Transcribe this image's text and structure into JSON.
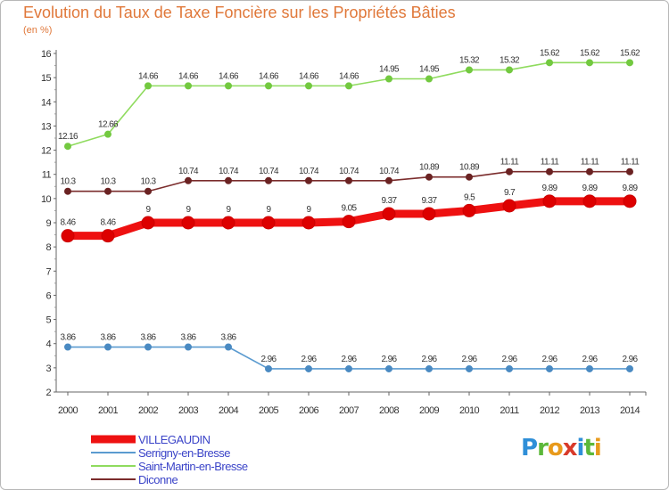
{
  "chart_data": {
    "type": "line",
    "title": "Evolution du Taux de Taxe Foncière sur les Propriétés Bâties",
    "ylabel": "(en %)",
    "xlabel": "",
    "ylim": [
      2,
      16
    ],
    "yticks": [
      "2",
      "3",
      "4",
      "5",
      "6",
      "7",
      "8",
      "9",
      "10",
      "11",
      "12",
      "13",
      "14",
      "15",
      "16"
    ],
    "categories": [
      "2000",
      "2001",
      "2002",
      "2003",
      "2004",
      "2005",
      "2006",
      "2007",
      "2008",
      "2009",
      "2010",
      "2011",
      "2012",
      "2013",
      "2014"
    ],
    "grid": false,
    "series": [
      {
        "name": "Saint-Martin-en-Bresse",
        "color": "#8fdb5e",
        "marker": "#73c940",
        "values": [
          12.16,
          12.66,
          14.66,
          14.66,
          14.66,
          14.66,
          14.66,
          14.66,
          14.95,
          14.95,
          15.32,
          15.32,
          15.62,
          15.62,
          15.62
        ],
        "labels": [
          "12.16",
          "12.66",
          "14.66",
          "14.66",
          "14.66",
          "14.66",
          "14.66",
          "14.66",
          "14.95",
          "14.95",
          "15.32",
          "15.32",
          "15.62",
          "15.62",
          "15.62"
        ]
      },
      {
        "name": "Diconne",
        "color": "#7b2c2c",
        "marker": "#6a2222",
        "values": [
          10.3,
          10.3,
          10.3,
          10.74,
          10.74,
          10.74,
          10.74,
          10.74,
          10.74,
          10.89,
          10.89,
          11.11,
          11.11,
          11.11,
          11.11
        ],
        "labels": [
          "10.3",
          "10.3",
          "10.3",
          "10.74",
          "10.74",
          "10.74",
          "10.74",
          "10.74",
          "10.74",
          "10.89",
          "10.89",
          "11.11",
          "11.11",
          "11.11",
          "11.11"
        ]
      },
      {
        "name": "VILLEGAUDIN",
        "color": "#ee1111",
        "marker": "#dd0000",
        "values": [
          8.46,
          8.46,
          9,
          9,
          9,
          9,
          9,
          9.05,
          9.37,
          9.37,
          9.5,
          9.7,
          9.89,
          9.89,
          9.89
        ],
        "labels": [
          "8.46",
          "8.46",
          "9",
          "9",
          "9",
          "9",
          "9",
          "9.05",
          "9.37",
          "9.37",
          "9.5",
          "9.7",
          "9.89",
          "9.89",
          "9.89"
        ]
      },
      {
        "name": "Serrigny-en-Bresse",
        "color": "#5b9bd0",
        "marker": "#4a8ac2",
        "values": [
          3.86,
          3.86,
          3.86,
          3.86,
          3.86,
          2.96,
          2.96,
          2.96,
          2.96,
          2.96,
          2.96,
          2.96,
          2.96,
          2.96,
          2.96
        ],
        "labels": [
          "3.86",
          "3.86",
          "3.86",
          "3.86",
          "3.86",
          "2.96",
          "2.96",
          "2.96",
          "2.96",
          "2.96",
          "2.96",
          "2.96",
          "2.96",
          "2.96",
          "2.96"
        ]
      }
    ],
    "legend": {
      "placement": "bottom-left",
      "order": [
        "VILLEGAUDIN",
        "Serrigny-en-Bresse",
        "Saint-Martin-en-Bresse",
        "Diconne"
      ]
    }
  },
  "logo": {
    "text": "Proxiti",
    "letters": [
      {
        "ch": "P",
        "color": "#2f8fd8"
      },
      {
        "ch": "r",
        "color": "#5cb83a"
      },
      {
        "ch": "o",
        "color": "#e89a1c"
      },
      {
        "ch": "x",
        "color": "#d83a2a"
      },
      {
        "ch": "i",
        "color": "#2f8fd8"
      },
      {
        "ch": "t",
        "color": "#5cb83a"
      },
      {
        "ch": "i",
        "color": "#e89a1c"
      }
    ]
  }
}
